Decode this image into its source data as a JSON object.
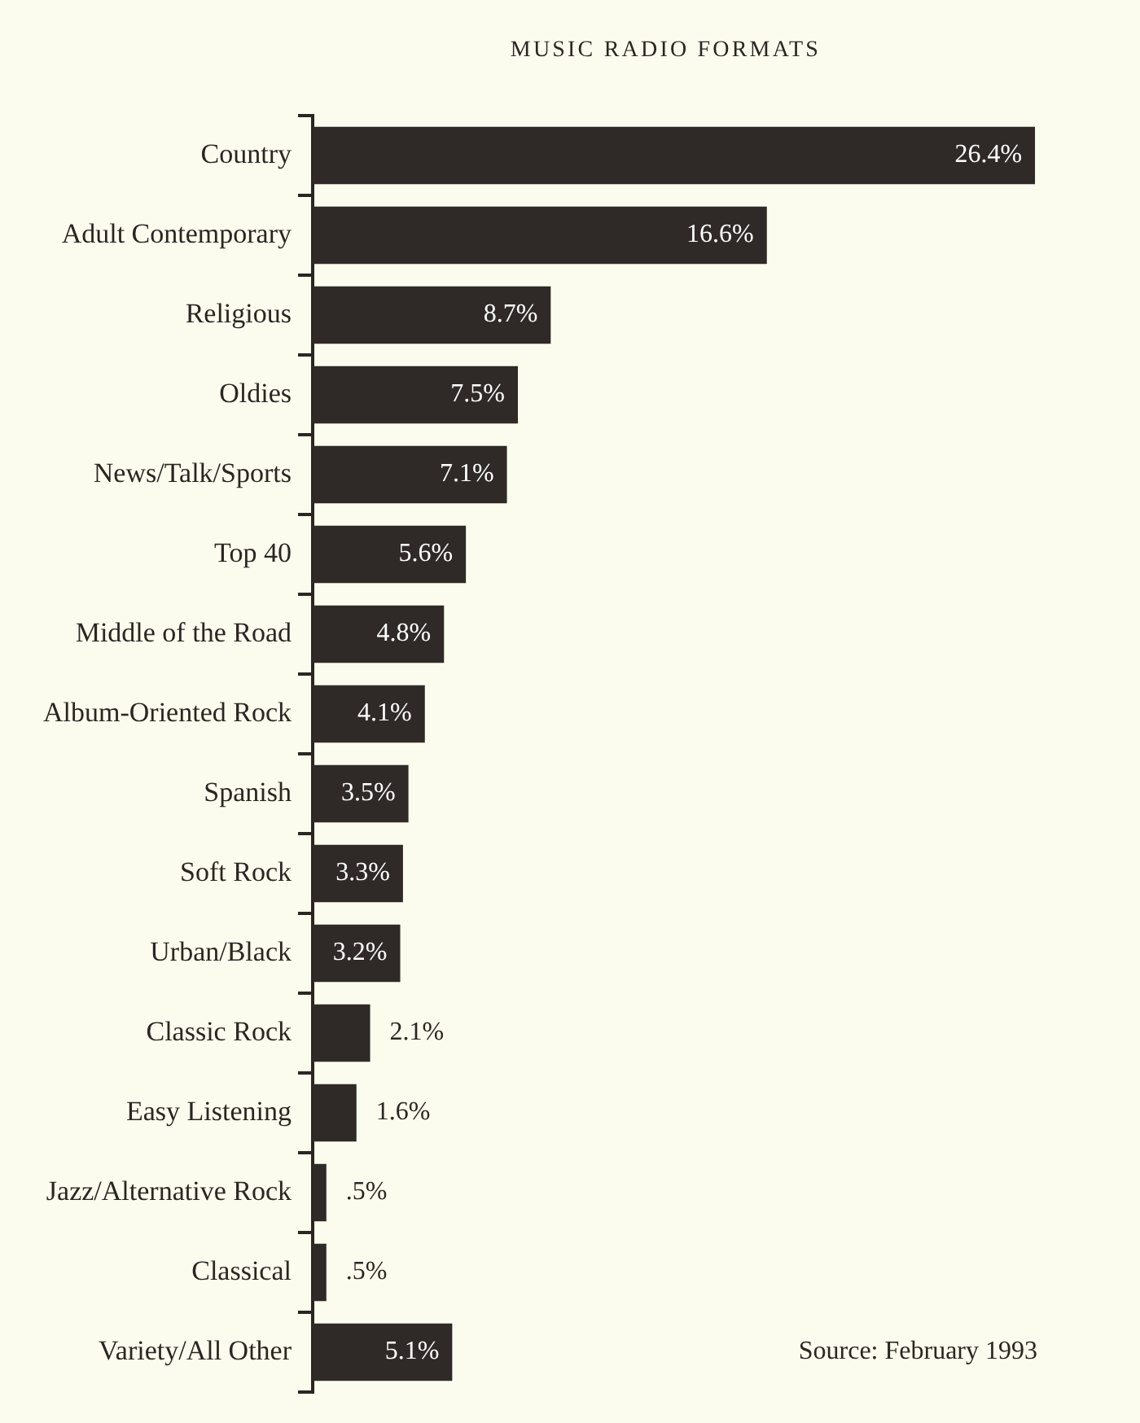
{
  "chart_data": {
    "type": "bar",
    "orientation": "horizontal",
    "title": "MUSIC RADIO FORMATS",
    "categories": [
      "Country",
      "Adult Contemporary",
      "Religious",
      "Oldies",
      "News/Talk/Sports",
      "Top 40",
      "Middle of the Road",
      "Album-Oriented Rock",
      "Spanish",
      "Soft Rock",
      "Urban/Black",
      "Classic Rock",
      "Easy Listening",
      "Jazz/Alternative Rock",
      "Classical",
      "Variety/All Other"
    ],
    "values": [
      26.4,
      16.6,
      8.7,
      7.5,
      7.1,
      5.6,
      4.8,
      4.1,
      3.5,
      3.3,
      3.2,
      2.1,
      1.6,
      0.5,
      0.5,
      5.1
    ],
    "color": "#2f2a27",
    "value_labels": [
      "26.4%",
      "16.6%",
      "8.7%",
      "7.5%",
      "7.1%",
      "5.6%",
      "4.8%",
      "4.1%",
      "3.5%",
      "3.3%",
      "3.2%",
      "2.1%",
      "1.6%",
      ".5%",
      ".5%",
      "5.1%"
    ],
    "tick_labels": "y",
    "annotations": [
      "Source: February 1993"
    ]
  }
}
